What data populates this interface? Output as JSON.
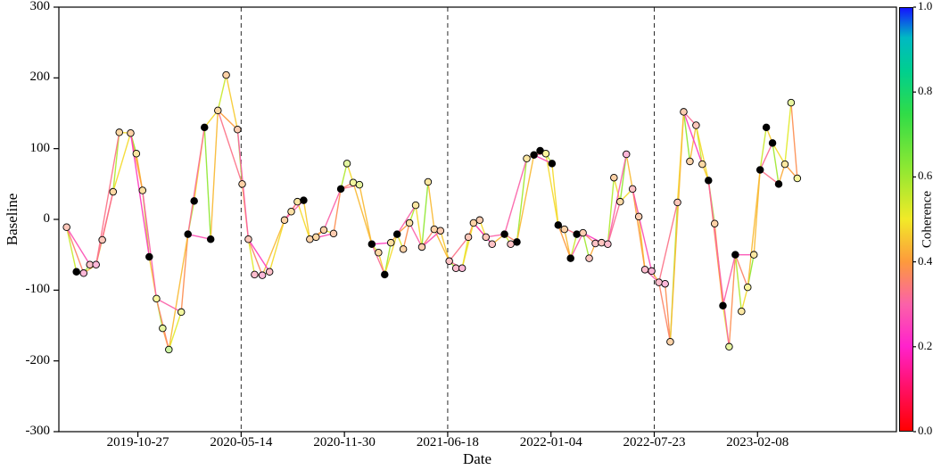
{
  "chart_data": {
    "type": "scatter",
    "subtype": "baseline-coherence-network",
    "title": "",
    "xlabel": "Date",
    "ylabel": "Baseline",
    "ylim": [
      -300,
      300
    ],
    "yticks": [
      -300,
      -200,
      -100,
      0,
      100,
      200,
      300
    ],
    "date_epoch": "2019-06-01",
    "xlim_days": [
      -5,
      1617
    ],
    "xticks": [
      [
        148,
        "2019-10-27"
      ],
      [
        348,
        "2020-05-14"
      ],
      [
        548,
        "2020-11-30"
      ],
      [
        748,
        "2021-06-18"
      ],
      [
        948,
        "2022-01-04"
      ],
      [
        1148,
        "2022-07-23"
      ],
      [
        1348,
        "2023-02-08"
      ]
    ],
    "vlines_days": [
      348,
      748,
      1148
    ],
    "grid": false,
    "colorbar": {
      "label": "Coherence",
      "position": "right",
      "ticks": [
        [
          1.0,
          "1.0"
        ],
        [
          0.8,
          "0.8"
        ],
        [
          0.6,
          "0.6"
        ],
        [
          0.4,
          "0.4"
        ],
        [
          0.2,
          "0.2"
        ],
        [
          0.0,
          "0.0"
        ]
      ],
      "stops": [
        [
          0,
          "#ff0000"
        ],
        [
          0.1,
          "#ff1064"
        ],
        [
          0.2,
          "#ff22cc"
        ],
        [
          0.3,
          "#fb62a8"
        ],
        [
          0.4,
          "#fd9a3c"
        ],
        [
          0.5,
          "#f2ea28"
        ],
        [
          0.62,
          "#8fe832"
        ],
        [
          0.75,
          "#30dc48"
        ],
        [
          0.85,
          "#00cf8e"
        ],
        [
          0.93,
          "#00b9c3"
        ],
        [
          1,
          "#1414ff"
        ]
      ]
    },
    "node_colors": {
      "reference_node": "#000000",
      "edge_stroke": "#000000"
    },
    "nodes_format": "[days_since_epoch, baseline, face_coherence(-1=black)]",
    "nodes": [
      [
        10,
        -11,
        0.36
      ],
      [
        29,
        -74,
        -1
      ],
      [
        43,
        -76,
        0.3
      ],
      [
        55,
        -64,
        0.33
      ],
      [
        67,
        -64,
        0.3
      ],
      [
        79,
        -29,
        0.36
      ],
      [
        100,
        39,
        0.42
      ],
      [
        112,
        123,
        0.42
      ],
      [
        134,
        122,
        0.4
      ],
      [
        145,
        93,
        0.46
      ],
      [
        157,
        41,
        0.44
      ],
      [
        170,
        -53,
        -1
      ],
      [
        184,
        -112,
        0.5
      ],
      [
        196,
        -154,
        0.55
      ],
      [
        208,
        -184,
        0.62
      ],
      [
        232,
        -131,
        0.52
      ],
      [
        245,
        -21,
        -1
      ],
      [
        257,
        26,
        -1
      ],
      [
        277,
        130,
        -1
      ],
      [
        289,
        -28,
        -1
      ],
      [
        303,
        154,
        0.42
      ],
      [
        319,
        204,
        0.4
      ],
      [
        341,
        127,
        0.38
      ],
      [
        350,
        50,
        0.4
      ],
      [
        362,
        -28,
        0.36
      ],
      [
        374,
        -78,
        0.32
      ],
      [
        389,
        -79,
        0.3
      ],
      [
        403,
        -74,
        0.33
      ],
      [
        432,
        -1,
        0.4
      ],
      [
        445,
        11,
        0.44
      ],
      [
        457,
        25,
        0.46
      ],
      [
        469,
        27,
        -1
      ],
      [
        481,
        -28,
        0.4
      ],
      [
        493,
        -25,
        0.42
      ],
      [
        508,
        -15,
        0.4
      ],
      [
        527,
        -20,
        0.38
      ],
      [
        541,
        43,
        -1
      ],
      [
        553,
        79,
        0.56
      ],
      [
        565,
        52,
        0.52
      ],
      [
        577,
        49,
        0.55
      ],
      [
        601,
        -35,
        -1
      ],
      [
        614,
        -47,
        0.42
      ],
      [
        626,
        -78,
        -1
      ],
      [
        638,
        -33,
        0.44
      ],
      [
        650,
        -21,
        -1
      ],
      [
        662,
        -42,
        0.4
      ],
      [
        674,
        -5,
        0.44
      ],
      [
        686,
        20,
        0.46
      ],
      [
        698,
        -39,
        0.38
      ],
      [
        710,
        53,
        0.46
      ],
      [
        722,
        -14,
        0.4
      ],
      [
        734,
        -16,
        0.38
      ],
      [
        751,
        -59,
        0.34
      ],
      [
        764,
        -69,
        0.32
      ],
      [
        776,
        -69,
        0.3
      ],
      [
        788,
        -25,
        0.36
      ],
      [
        798,
        -5,
        0.4
      ],
      [
        810,
        -1,
        0.38
      ],
      [
        822,
        -25,
        0.36
      ],
      [
        834,
        -35,
        0.34
      ],
      [
        858,
        -21,
        -1
      ],
      [
        870,
        -35,
        0.34
      ],
      [
        882,
        -32,
        -1
      ],
      [
        901,
        86,
        0.46
      ],
      [
        915,
        91,
        -1
      ],
      [
        927,
        97,
        -1
      ],
      [
        938,
        93,
        0.5
      ],
      [
        950,
        79,
        -1
      ],
      [
        962,
        -8,
        -1
      ],
      [
        974,
        -14,
        0.4
      ],
      [
        986,
        -55,
        -1
      ],
      [
        998,
        -21,
        -1
      ],
      [
        1010,
        -19,
        0.38
      ],
      [
        1022,
        -55,
        0.35
      ],
      [
        1034,
        -34,
        0.34
      ],
      [
        1046,
        -33,
        0.35
      ],
      [
        1058,
        -35,
        0.32
      ],
      [
        1070,
        59,
        0.4
      ],
      [
        1082,
        25,
        0.42
      ],
      [
        1094,
        92,
        0.3
      ],
      [
        1106,
        43,
        0.34
      ],
      [
        1118,
        4,
        0.38
      ],
      [
        1130,
        -71,
        0.32
      ],
      [
        1143,
        -73,
        0.3
      ],
      [
        1157,
        -89,
        0.32
      ],
      [
        1169,
        -91,
        0.3
      ],
      [
        1179,
        -173,
        0.4
      ],
      [
        1193,
        24,
        0.36
      ],
      [
        1205,
        152,
        0.38
      ],
      [
        1217,
        82,
        0.4
      ],
      [
        1229,
        133,
        0.36
      ],
      [
        1241,
        78,
        0.42
      ],
      [
        1253,
        55,
        -1
      ],
      [
        1265,
        -6,
        0.4
      ],
      [
        1281,
        -122,
        -1
      ],
      [
        1293,
        -180,
        0.55
      ],
      [
        1305,
        -50,
        -1
      ],
      [
        1317,
        -130,
        0.46
      ],
      [
        1329,
        -96,
        0.5
      ],
      [
        1341,
        -50,
        0.46
      ],
      [
        1353,
        70,
        -1
      ],
      [
        1365,
        130,
        -1
      ],
      [
        1377,
        108,
        -1
      ],
      [
        1389,
        50,
        -1
      ],
      [
        1401,
        78,
        0.46
      ],
      [
        1413,
        165,
        0.55
      ],
      [
        1425,
        58,
        0.5
      ]
    ],
    "edges_format": "[node_index_a, node_index_b, coherence]",
    "edges": [
      [
        0,
        1,
        0.55
      ],
      [
        1,
        2,
        0.46
      ],
      [
        2,
        3,
        0.6
      ],
      [
        3,
        4,
        0.42
      ],
      [
        4,
        5,
        0.52
      ],
      [
        5,
        6,
        0.38
      ],
      [
        6,
        7,
        0.58
      ],
      [
        7,
        8,
        0.48
      ],
      [
        8,
        9,
        0.62
      ],
      [
        9,
        10,
        0.44
      ],
      [
        10,
        11,
        0.55
      ],
      [
        11,
        12,
        0.46
      ],
      [
        12,
        13,
        0.6
      ],
      [
        13,
        14,
        0.42
      ],
      [
        14,
        15,
        0.52
      ],
      [
        15,
        16,
        0.38
      ],
      [
        16,
        17,
        0.58
      ],
      [
        17,
        18,
        0.48
      ],
      [
        18,
        19,
        0.62
      ],
      [
        19,
        20,
        0.44
      ],
      [
        20,
        21,
        0.55
      ],
      [
        21,
        22,
        0.46
      ],
      [
        22,
        23,
        0.6
      ],
      [
        23,
        24,
        0.42
      ],
      [
        24,
        25,
        0.52
      ],
      [
        25,
        26,
        0.38
      ],
      [
        26,
        27,
        0.58
      ],
      [
        27,
        28,
        0.48
      ],
      [
        28,
        29,
        0.62
      ],
      [
        29,
        30,
        0.44
      ],
      [
        30,
        31,
        0.55
      ],
      [
        31,
        32,
        0.46
      ],
      [
        32,
        33,
        0.6
      ],
      [
        33,
        34,
        0.42
      ],
      [
        34,
        35,
        0.52
      ],
      [
        35,
        36,
        0.38
      ],
      [
        36,
        37,
        0.58
      ],
      [
        37,
        38,
        0.48
      ],
      [
        38,
        39,
        0.62
      ],
      [
        39,
        40,
        0.44
      ],
      [
        40,
        41,
        0.55
      ],
      [
        41,
        42,
        0.46
      ],
      [
        42,
        43,
        0.6
      ],
      [
        43,
        44,
        0.42
      ],
      [
        44,
        45,
        0.52
      ],
      [
        45,
        46,
        0.38
      ],
      [
        46,
        47,
        0.58
      ],
      [
        47,
        48,
        0.48
      ],
      [
        48,
        49,
        0.62
      ],
      [
        49,
        50,
        0.44
      ],
      [
        50,
        51,
        0.55
      ],
      [
        51,
        52,
        0.46
      ],
      [
        52,
        53,
        0.6
      ],
      [
        53,
        54,
        0.42
      ],
      [
        54,
        55,
        0.52
      ],
      [
        55,
        56,
        0.38
      ],
      [
        56,
        57,
        0.58
      ],
      [
        57,
        58,
        0.48
      ],
      [
        58,
        59,
        0.62
      ],
      [
        59,
        60,
        0.44
      ],
      [
        60,
        61,
        0.55
      ],
      [
        61,
        62,
        0.46
      ],
      [
        62,
        63,
        0.6
      ],
      [
        63,
        64,
        0.42
      ],
      [
        64,
        65,
        0.52
      ],
      [
        65,
        66,
        0.38
      ],
      [
        66,
        67,
        0.58
      ],
      [
        67,
        68,
        0.48
      ],
      [
        68,
        69,
        0.62
      ],
      [
        69,
        70,
        0.44
      ],
      [
        70,
        71,
        0.55
      ],
      [
        71,
        72,
        0.46
      ],
      [
        72,
        73,
        0.6
      ],
      [
        73,
        74,
        0.42
      ],
      [
        74,
        75,
        0.52
      ],
      [
        75,
        76,
        0.38
      ],
      [
        76,
        77,
        0.58
      ],
      [
        77,
        78,
        0.48
      ],
      [
        78,
        79,
        0.62
      ],
      [
        79,
        80,
        0.44
      ],
      [
        80,
        81,
        0.55
      ],
      [
        81,
        82,
        0.46
      ],
      [
        82,
        83,
        0.6
      ],
      [
        83,
        84,
        0.42
      ],
      [
        84,
        85,
        0.52
      ],
      [
        85,
        86,
        0.38
      ],
      [
        86,
        87,
        0.58
      ],
      [
        87,
        88,
        0.48
      ],
      [
        88,
        89,
        0.62
      ],
      [
        89,
        90,
        0.44
      ],
      [
        90,
        91,
        0.55
      ],
      [
        91,
        92,
        0.46
      ],
      [
        92,
        93,
        0.6
      ],
      [
        93,
        94,
        0.42
      ],
      [
        94,
        95,
        0.52
      ],
      [
        95,
        96,
        0.38
      ],
      [
        96,
        97,
        0.58
      ],
      [
        97,
        98,
        0.48
      ],
      [
        98,
        99,
        0.62
      ],
      [
        99,
        100,
        0.44
      ],
      [
        100,
        101,
        0.55
      ],
      [
        101,
        102,
        0.46
      ],
      [
        102,
        103,
        0.6
      ],
      [
        103,
        104,
        0.42
      ],
      [
        104,
        105,
        0.52
      ],
      [
        105,
        106,
        0.38
      ],
      [
        0,
        2,
        0.36
      ],
      [
        2,
        4,
        0.44
      ],
      [
        4,
        6,
        0.32
      ],
      [
        6,
        8,
        0.48
      ],
      [
        8,
        10,
        0.4
      ],
      [
        10,
        12,
        0.3
      ],
      [
        12,
        14,
        0.36
      ],
      [
        14,
        16,
        0.44
      ],
      [
        16,
        18,
        0.32
      ],
      [
        18,
        20,
        0.48
      ],
      [
        20,
        22,
        0.4
      ],
      [
        22,
        24,
        0.3
      ],
      [
        24,
        26,
        0.36
      ],
      [
        26,
        28,
        0.44
      ],
      [
        28,
        30,
        0.32
      ],
      [
        30,
        32,
        0.48
      ],
      [
        32,
        34,
        0.4
      ],
      [
        34,
        36,
        0.3
      ],
      [
        36,
        38,
        0.36
      ],
      [
        38,
        40,
        0.44
      ],
      [
        40,
        42,
        0.32
      ],
      [
        42,
        44,
        0.48
      ],
      [
        44,
        46,
        0.4
      ],
      [
        46,
        48,
        0.3
      ],
      [
        48,
        50,
        0.36
      ],
      [
        50,
        52,
        0.44
      ],
      [
        52,
        54,
        0.32
      ],
      [
        54,
        56,
        0.48
      ],
      [
        56,
        58,
        0.4
      ],
      [
        58,
        60,
        0.3
      ],
      [
        60,
        62,
        0.36
      ],
      [
        62,
        64,
        0.44
      ],
      [
        64,
        66,
        0.32
      ],
      [
        66,
        68,
        0.48
      ],
      [
        68,
        70,
        0.4
      ],
      [
        70,
        72,
        0.3
      ],
      [
        72,
        74,
        0.36
      ],
      [
        74,
        76,
        0.44
      ],
      [
        76,
        78,
        0.32
      ],
      [
        78,
        80,
        0.48
      ],
      [
        80,
        82,
        0.4
      ],
      [
        82,
        84,
        0.3
      ],
      [
        84,
        86,
        0.36
      ],
      [
        86,
        88,
        0.44
      ],
      [
        88,
        90,
        0.32
      ],
      [
        90,
        92,
        0.48
      ],
      [
        92,
        94,
        0.4
      ],
      [
        94,
        96,
        0.3
      ],
      [
        96,
        98,
        0.36
      ],
      [
        98,
        100,
        0.44
      ],
      [
        100,
        102,
        0.32
      ],
      [
        102,
        104,
        0.48
      ],
      [
        104,
        106,
        0.4
      ],
      [
        0,
        3,
        0.27
      ],
      [
        4,
        7,
        0.33
      ],
      [
        8,
        11,
        0.24
      ],
      [
        12,
        15,
        0.3
      ],
      [
        16,
        19,
        0.27
      ],
      [
        20,
        23,
        0.33
      ],
      [
        24,
        27,
        0.24
      ],
      [
        28,
        31,
        0.3
      ],
      [
        32,
        35,
        0.27
      ],
      [
        36,
        39,
        0.33
      ],
      [
        40,
        43,
        0.24
      ],
      [
        44,
        47,
        0.3
      ],
      [
        48,
        51,
        0.27
      ],
      [
        52,
        55,
        0.33
      ],
      [
        56,
        59,
        0.24
      ],
      [
        60,
        63,
        0.3
      ],
      [
        64,
        67,
        0.27
      ],
      [
        68,
        71,
        0.33
      ],
      [
        72,
        75,
        0.24
      ],
      [
        76,
        79,
        0.3
      ],
      [
        80,
        83,
        0.27
      ],
      [
        84,
        87,
        0.33
      ],
      [
        88,
        91,
        0.24
      ],
      [
        92,
        95,
        0.3
      ],
      [
        96,
        99,
        0.27
      ],
      [
        100,
        103,
        0.33
      ]
    ]
  }
}
